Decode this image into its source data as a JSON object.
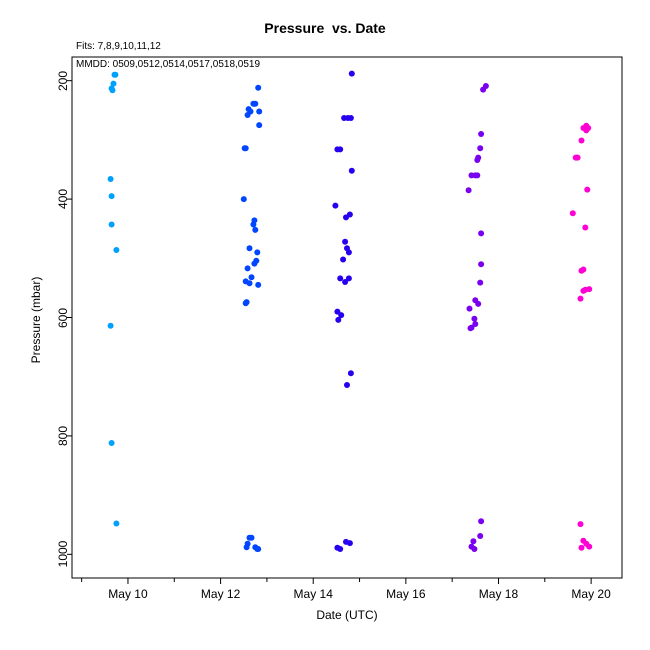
{
  "chart_data": {
    "type": "scatter",
    "title": "Pressure  vs. Date",
    "annotations": [
      "Fits: 7,8,9,10,11,12",
      "MMDD: 0509,0512,0514,0517,0518,0519"
    ],
    "xlabel": "Date (UTC)",
    "ylabel": "Pressure (mbar)",
    "y_axis_inverted": true,
    "xlim": [
      "2023-05-08T19:00",
      "2023-05-20T16:00"
    ],
    "ylim": [
      1040,
      160
    ],
    "x_ticks": [
      "May 10",
      "May 12",
      "May 14",
      "May 16",
      "May 18",
      "May 20"
    ],
    "x_tick_dates": [
      "2023-05-10",
      "2023-05-12",
      "2023-05-14",
      "2023-05-16",
      "2023-05-18",
      "2023-05-20"
    ],
    "x_minor_tick_dates": [
      "2023-05-09",
      "2023-05-11",
      "2023-05-13",
      "2023-05-15",
      "2023-05-17",
      "2023-05-19"
    ],
    "y_ticks": [
      200,
      400,
      600,
      800,
      1000
    ],
    "grid": false,
    "legend": "none",
    "series": [
      {
        "color": "#00a0ff",
        "points": [
          [
            "2023-05-09T17:00",
            190
          ],
          [
            "2023-05-09T17:30",
            190
          ],
          [
            "2023-05-09T16:30",
            205
          ],
          [
            "2023-05-09T15:30",
            213
          ],
          [
            "2023-05-09T16:00",
            216
          ],
          [
            "2023-05-09T15:00",
            366
          ],
          [
            "2023-05-09T15:30",
            395
          ],
          [
            "2023-05-09T15:30",
            443
          ],
          [
            "2023-05-09T18:00",
            486
          ],
          [
            "2023-05-09T15:00",
            614
          ],
          [
            "2023-05-09T15:30",
            812
          ],
          [
            "2023-05-09T18:00",
            948
          ]
        ]
      },
      {
        "color": "#0046ff",
        "points": [
          [
            "2023-05-12T19:30",
            212
          ],
          [
            "2023-05-12T17:00",
            239
          ],
          [
            "2023-05-12T18:00",
            239
          ],
          [
            "2023-05-12T14:30",
            248
          ],
          [
            "2023-05-12T15:30",
            252
          ],
          [
            "2023-05-12T20:00",
            252
          ],
          [
            "2023-05-12T14:00",
            258
          ],
          [
            "2023-05-12T20:00",
            275
          ],
          [
            "2023-05-12T12:30",
            314
          ],
          [
            "2023-05-12T13:00",
            314
          ],
          [
            "2023-05-12T12:00",
            400
          ],
          [
            "2023-05-12T17:30",
            436
          ],
          [
            "2023-05-12T17:00",
            443
          ],
          [
            "2023-05-12T18:00",
            452
          ],
          [
            "2023-05-12T15:00",
            483
          ],
          [
            "2023-05-12T19:00",
            490
          ],
          [
            "2023-05-12T18:30",
            504
          ],
          [
            "2023-05-12T17:30",
            509
          ],
          [
            "2023-05-12T14:00",
            517
          ],
          [
            "2023-05-12T16:00",
            532
          ],
          [
            "2023-05-12T13:00",
            539
          ],
          [
            "2023-05-12T15:00",
            542
          ],
          [
            "2023-05-12T19:30",
            545
          ],
          [
            "2023-05-12T13:30",
            574
          ],
          [
            "2023-05-12T13:00",
            576
          ],
          [
            "2023-05-12T15:00",
            972
          ],
          [
            "2023-05-12T16:00",
            972
          ],
          [
            "2023-05-12T14:00",
            982
          ],
          [
            "2023-05-12T13:30",
            988
          ],
          [
            "2023-05-12T18:00",
            988
          ],
          [
            "2023-05-12T19:00",
            991
          ],
          [
            "2023-05-12T19:30",
            991
          ]
        ]
      },
      {
        "color": "#2800f0",
        "points": [
          [
            "2023-05-14T20:00",
            188
          ],
          [
            "2023-05-14T16:00",
            263
          ],
          [
            "2023-05-14T18:00",
            263
          ],
          [
            "2023-05-14T19:30",
            263
          ],
          [
            "2023-05-14T12:30",
            316
          ],
          [
            "2023-05-14T14:00",
            316
          ],
          [
            "2023-05-14T20:00",
            352
          ],
          [
            "2023-05-14T11:30",
            411
          ],
          [
            "2023-05-14T19:00",
            426
          ],
          [
            "2023-05-14T17:00",
            431
          ],
          [
            "2023-05-14T16:30",
            472
          ],
          [
            "2023-05-14T17:30",
            483
          ],
          [
            "2023-05-14T18:30",
            490
          ],
          [
            "2023-05-14T15:30",
            502
          ],
          [
            "2023-05-14T14:00",
            534
          ],
          [
            "2023-05-14T18:30",
            534
          ],
          [
            "2023-05-14T16:30",
            540
          ],
          [
            "2023-05-14T12:30",
            590
          ],
          [
            "2023-05-14T14:30",
            596
          ],
          [
            "2023-05-14T13:00",
            604
          ],
          [
            "2023-05-14T19:30",
            694
          ],
          [
            "2023-05-14T17:30",
            714
          ],
          [
            "2023-05-14T17:00",
            979
          ],
          [
            "2023-05-14T19:00",
            981
          ],
          [
            "2023-05-14T12:30",
            989
          ],
          [
            "2023-05-14T14:00",
            991
          ]
        ]
      },
      {
        "color": "#7a00f0",
        "points": [
          [
            "2023-05-17T17:30",
            209
          ],
          [
            "2023-05-17T16:00",
            215
          ],
          [
            "2023-05-17T15:00",
            290
          ],
          [
            "2023-05-17T14:30",
            314
          ],
          [
            "2023-05-17T13:30",
            330
          ],
          [
            "2023-05-17T13:00",
            334
          ],
          [
            "2023-05-17T10:00",
            360
          ],
          [
            "2023-05-17T12:00",
            360
          ],
          [
            "2023-05-17T13:00",
            360
          ],
          [
            "2023-05-17T08:30",
            385
          ],
          [
            "2023-05-17T15:00",
            458
          ],
          [
            "2023-05-17T15:00",
            510
          ],
          [
            "2023-05-17T14:30",
            541
          ],
          [
            "2023-05-17T12:00",
            571
          ],
          [
            "2023-05-17T13:30",
            577
          ],
          [
            "2023-05-17T09:00",
            585
          ],
          [
            "2023-05-17T11:30",
            602
          ],
          [
            "2023-05-17T12:00",
            611
          ],
          [
            "2023-05-17T10:00",
            617
          ],
          [
            "2023-05-17T09:30",
            618
          ],
          [
            "2023-05-17T15:00",
            944
          ],
          [
            "2023-05-17T14:30",
            969
          ],
          [
            "2023-05-17T11:00",
            978
          ],
          [
            "2023-05-17T10:00",
            987
          ],
          [
            "2023-05-17T11:30",
            991
          ]
        ]
      },
      {
        "color": "#ff00d4",
        "points": [
          [
            "2023-05-19T21:30",
            276
          ],
          [
            "2023-05-19T20:00",
            280
          ],
          [
            "2023-05-19T22:30",
            280
          ],
          [
            "2023-05-19T21:30",
            284
          ],
          [
            "2023-05-19T19:00",
            301
          ],
          [
            "2023-05-19T16:00",
            330
          ],
          [
            "2023-05-19T17:00",
            330
          ],
          [
            "2023-05-19T16:30",
            330
          ],
          [
            "2023-05-19T22:00",
            384
          ],
          [
            "2023-05-19T14:30",
            424
          ],
          [
            "2023-05-19T21:00",
            448
          ],
          [
            "2023-05-19T20:00",
            519
          ],
          [
            "2023-05-19T19:00",
            521
          ],
          [
            "2023-05-19T23:00",
            552
          ],
          [
            "2023-05-19T21:00",
            553
          ],
          [
            "2023-05-19T20:00",
            555
          ],
          [
            "2023-05-19T18:30",
            568
          ],
          [
            "2023-05-19T18:30",
            949
          ],
          [
            "2023-05-19T20:00",
            977
          ],
          [
            "2023-05-19T21:30",
            982
          ],
          [
            "2023-05-19T23:00",
            987
          ],
          [
            "2023-05-19T19:00",
            989
          ]
        ]
      }
    ]
  }
}
